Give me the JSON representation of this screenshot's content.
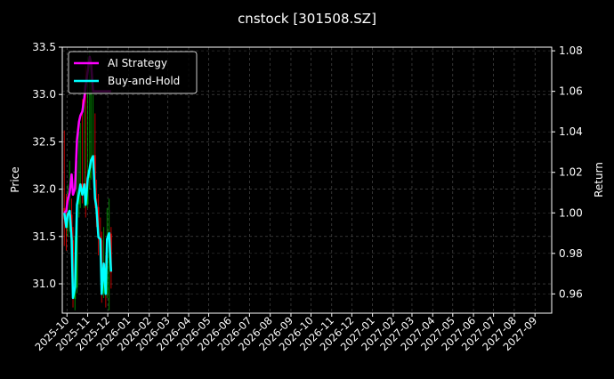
{
  "chart_data": {
    "type": "line",
    "title": "cnstock [301508.SZ]",
    "ylabel_left": "Price",
    "ylabel_right": "Return",
    "xlim": [
      "2025-09-24",
      "2027-09-26"
    ],
    "ylim_left": [
      30.69,
      33.5
    ],
    "ylim_right": [
      0.9505,
      1.0818
    ],
    "grid": true,
    "legend_placement": "top-left",
    "x_tick_labels": [
      "2025-10",
      "2025-11",
      "2025-12",
      "2026-01",
      "2026-02",
      "2026-03",
      "2026-04",
      "2026-05",
      "2026-06",
      "2026-07",
      "2026-08",
      "2026-09",
      "2026-10",
      "2026-11",
      "2026-12",
      "2027-01",
      "2027-02",
      "2027-03",
      "2027-04",
      "2027-05",
      "2027-06",
      "2027-07",
      "2027-08",
      "2027-09"
    ],
    "y_left_ticks": [
      "31.0",
      "31.5",
      "32.0",
      "32.5",
      "33.0",
      "33.5"
    ],
    "y_right_ticks": [
      "0.96",
      "0.98",
      "1.00",
      "1.02",
      "1.04",
      "1.06",
      "1.08"
    ],
    "dates": [
      "2025-09-27",
      "2025-09-30",
      "2025-10-02",
      "2025-10-05",
      "2025-10-08",
      "2025-10-10",
      "2025-10-13",
      "2025-10-16",
      "2025-10-19",
      "2025-10-21",
      "2025-10-24",
      "2025-10-27",
      "2025-10-29",
      "2025-11-01",
      "2025-11-04",
      "2025-11-06",
      "2025-11-09",
      "2025-11-12",
      "2025-11-14",
      "2025-11-17",
      "2025-11-20",
      "2025-11-22",
      "2025-11-25",
      "2025-11-28",
      "2025-11-30",
      "2025-12-03",
      "2025-12-06"
    ],
    "candles": {
      "open": [
        31.8,
        31.68,
        31.59,
        31.68,
        31.73,
        31.46,
        30.84,
        30.96,
        31.84,
        31.97,
        32.06,
        31.93,
        32.06,
        31.84,
        32.12,
        32.22,
        32.31,
        32.36,
        31.9,
        31.81,
        31.49,
        31.46,
        30.9,
        31.21,
        30.9,
        31.46,
        31.53
      ],
      "high": [
        32.62,
        31.95,
        32.05,
        32.3,
        31.9,
        31.6,
        31.5,
        32.3,
        32.6,
        32.7,
        32.95,
        33.1,
        33.3,
        33.4,
        33.45,
        33.2,
        33.0,
        32.8,
        32.1,
        31.95,
        31.7,
        31.55,
        31.6,
        31.3,
        31.8,
        31.9,
        31.6
      ],
      "low": [
        31.4,
        31.35,
        31.5,
        31.55,
        31.2,
        30.75,
        30.72,
        30.9,
        31.7,
        31.8,
        31.85,
        31.8,
        31.7,
        31.8,
        32.0,
        32.1,
        32.2,
        31.8,
        31.6,
        31.3,
        31.3,
        30.8,
        30.85,
        30.75,
        30.85,
        30.72,
        30.95
      ],
      "close": [
        31.68,
        31.59,
        31.68,
        31.73,
        31.46,
        30.84,
        30.96,
        31.84,
        31.97,
        32.06,
        31.93,
        32.06,
        31.84,
        32.12,
        32.22,
        32.31,
        32.36,
        31.9,
        31.81,
        31.49,
        31.46,
        30.9,
        31.21,
        30.9,
        31.46,
        31.53,
        31.12
      ],
      "up_color": "#00b000",
      "down_color": "#ff0000"
    },
    "series": [
      {
        "name": "AI Strategy",
        "axis": "right",
        "color": "#ff00ff",
        "values": [
          1.0,
          1.001,
          1.006,
          1.01,
          1.019,
          1.009,
          1.012,
          1.036,
          1.045,
          1.048,
          1.05,
          1.057,
          1.063,
          1.07,
          1.077,
          1.074,
          1.06,
          1.06,
          1.06,
          1.06,
          1.06,
          1.06,
          1.06,
          1.06,
          1.06,
          1.06,
          1.06
        ]
      },
      {
        "name": "Buy-and-Hold",
        "axis": "right",
        "color": "#00ffff",
        "values": [
          1.0,
          0.993,
          0.999,
          1.001,
          0.987,
          0.958,
          0.963,
          1.004,
          1.01,
          1.014,
          1.009,
          1.014,
          1.004,
          1.017,
          1.022,
          1.026,
          1.028,
          1.007,
          1.003,
          0.988,
          0.987,
          0.96,
          0.975,
          0.96,
          0.987,
          0.99,
          0.971
        ]
      }
    ]
  }
}
